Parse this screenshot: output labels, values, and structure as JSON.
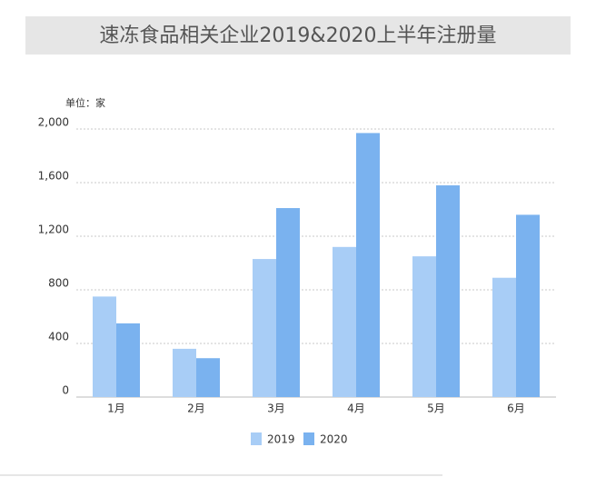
{
  "chart_data": {
    "type": "bar",
    "title": "速冻食品相关企业2019&2020上半年注册量",
    "unit_label": "单位：家",
    "categories": [
      "1月",
      "2月",
      "3月",
      "4月",
      "5月",
      "6月"
    ],
    "series": [
      {
        "name": "2019",
        "color": "#a8cdf6",
        "values": [
          750,
          360,
          1030,
          1120,
          1050,
          890
        ]
      },
      {
        "name": "2020",
        "color": "#7ab2ef",
        "values": [
          550,
          290,
          1410,
          1970,
          1580,
          1360
        ]
      }
    ],
    "ylim": [
      0,
      2000
    ],
    "yticks": [
      0,
      400,
      800,
      {
        "value": 1200,
        "label": "1,200"
      },
      {
        "value": 1600,
        "label": "1,600"
      },
      {
        "value": 2000,
        "label": "2,000"
      }
    ],
    "grid": true
  }
}
